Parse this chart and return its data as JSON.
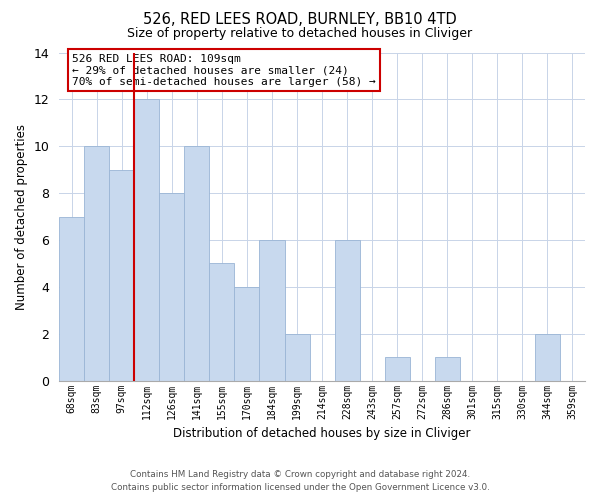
{
  "title": "526, RED LEES ROAD, BURNLEY, BB10 4TD",
  "subtitle": "Size of property relative to detached houses in Cliviger",
  "xlabel": "Distribution of detached houses by size in Cliviger",
  "ylabel": "Number of detached properties",
  "bar_labels": [
    "68sqm",
    "83sqm",
    "97sqm",
    "112sqm",
    "126sqm",
    "141sqm",
    "155sqm",
    "170sqm",
    "184sqm",
    "199sqm",
    "214sqm",
    "228sqm",
    "243sqm",
    "257sqm",
    "272sqm",
    "286sqm",
    "301sqm",
    "315sqm",
    "330sqm",
    "344sqm",
    "359sqm"
  ],
  "bar_values": [
    7,
    10,
    9,
    12,
    8,
    10,
    5,
    4,
    6,
    2,
    0,
    6,
    0,
    1,
    0,
    1,
    0,
    0,
    0,
    2,
    0
  ],
  "bar_color": "#c8d9ee",
  "bar_edge_color": "#9ab5d5",
  "vline_color": "#cc0000",
  "ylim": [
    0,
    14
  ],
  "yticks": [
    0,
    2,
    4,
    6,
    8,
    10,
    12,
    14
  ],
  "annotation_line1": "526 RED LEES ROAD: 109sqm",
  "annotation_line2": "← 29% of detached houses are smaller (24)",
  "annotation_line3": "70% of semi-detached houses are larger (58) →",
  "annotation_box_color": "#ffffff",
  "annotation_box_edge": "#cc0000",
  "footer_line1": "Contains HM Land Registry data © Crown copyright and database right 2024.",
  "footer_line2": "Contains public sector information licensed under the Open Government Licence v3.0.",
  "background_color": "#ffffff",
  "grid_color": "#c8d4e8"
}
